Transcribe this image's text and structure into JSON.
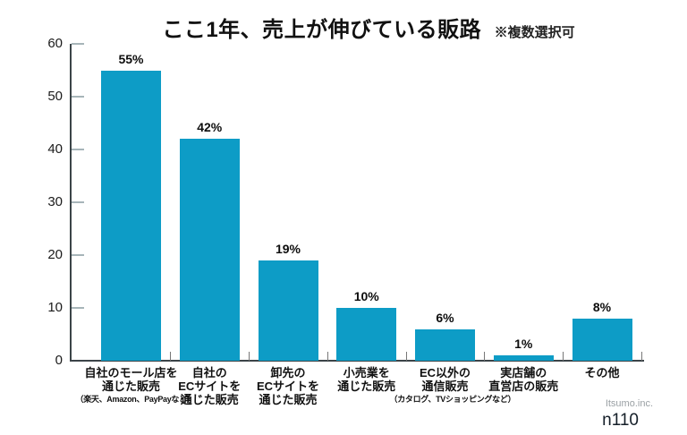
{
  "title": {
    "main": "ここ1年、売上が伸びている販路",
    "note": "※複数選択可"
  },
  "footer": {
    "brand": "Itsumo.inc.",
    "sample": "n110"
  },
  "colors": {
    "bar": "#0d9cc6",
    "axis": "#3b4448",
    "y_tick": "#a7b5b9",
    "category_tick": "#777777",
    "title_text": "#111111",
    "brand_text": "#9aa0a4"
  },
  "chart_data": {
    "type": "bar",
    "title": "ここ1年、売上が伸びている販路",
    "subtitle": "※複数選択可",
    "xlabel": "",
    "ylabel": "",
    "ylim": [
      0,
      60
    ],
    "yticks": [
      0,
      10,
      20,
      30,
      40,
      50,
      60
    ],
    "grid": false,
    "legend": false,
    "values": [
      55,
      42,
      19,
      10,
      6,
      1,
      8
    ],
    "value_labels": [
      "55%",
      "42%",
      "19%",
      "10%",
      "6%",
      "1%",
      "8%"
    ],
    "categories": [
      {
        "lines": [
          "自社のモール店を",
          "通じた販売"
        ],
        "note": "（楽天、Amazon、PayPayなど）"
      },
      {
        "lines": [
          "自社の",
          "ECサイトを",
          "通じた販売"
        ],
        "note": ""
      },
      {
        "lines": [
          "卸先の",
          "ECサイトを",
          "通じた販売"
        ],
        "note": ""
      },
      {
        "lines": [
          "小売業を",
          "通じた販売"
        ],
        "note": ""
      },
      {
        "lines": [
          "EC以外の",
          "通信販売"
        ],
        "note": "（カタログ、TVショッピングなど）"
      },
      {
        "lines": [
          "実店舗の",
          "直営店の販売"
        ],
        "note": ""
      },
      {
        "lines": [
          "その他"
        ],
        "note": ""
      }
    ],
    "annotations": [
      "Itsumo.inc.",
      "n110"
    ]
  }
}
